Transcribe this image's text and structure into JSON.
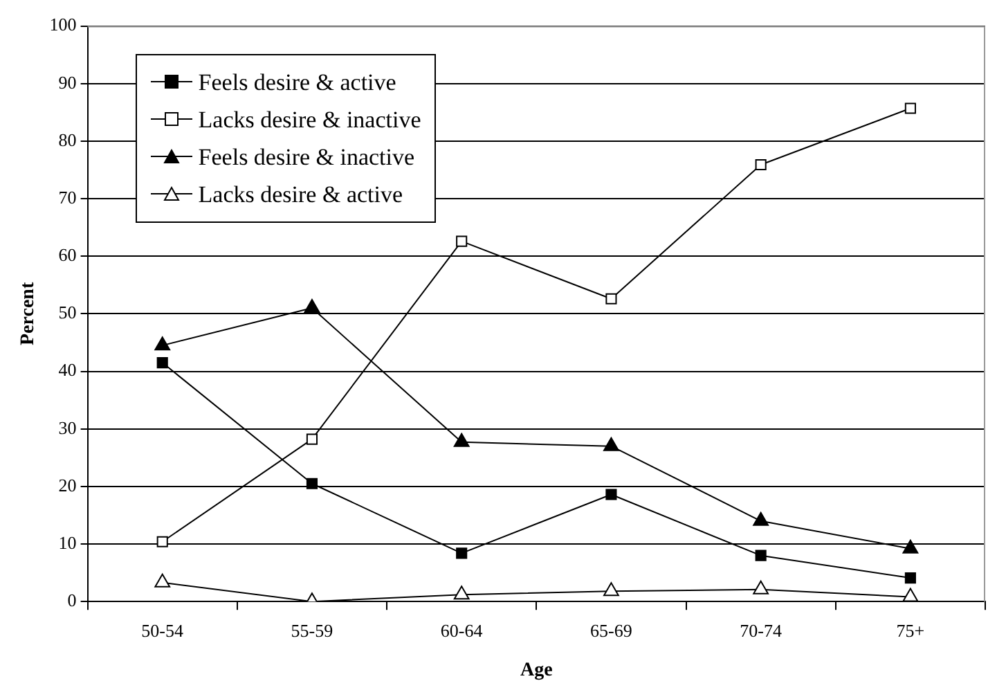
{
  "chart_data": {
    "type": "line",
    "xlabel": "Age",
    "ylabel": "Percent",
    "categories": [
      "50-54",
      "55-59",
      "60-64",
      "65-69",
      "70-74",
      "75+"
    ],
    "series": [
      {
        "name": "Feels desire & active",
        "color": "#000000",
        "marker": "square",
        "values": [
          41.5,
          20.5,
          8.4,
          18.6,
          8.0,
          4.1
        ]
      },
      {
        "name": "Lacks desire & inactive",
        "color": "#000000",
        "marker": "square",
        "colors": [
          "#ffffff",
          "#ffffff",
          "#ffffff",
          "#ffffff",
          "#ffffff",
          "#ffffff"
        ],
        "values": [
          10.4,
          28.2,
          62.6,
          52.6,
          75.9,
          85.7
        ]
      },
      {
        "name": "Feels desire & inactive",
        "color": "#000000",
        "marker": "triangle",
        "values": [
          44.5,
          51.0,
          27.7,
          27.0,
          14.0,
          9.2
        ]
      },
      {
        "name": "Lacks desire & active",
        "color": "#000000",
        "marker": "triangle",
        "colors": [
          "#ffffff",
          "#ffffff",
          "#ffffff",
          "#ffffff",
          "#ffffff",
          "#ffffff"
        ],
        "values": [
          3.3,
          0,
          1.2,
          1.8,
          2.1,
          0.8
        ]
      }
    ],
    "ylim": [
      0,
      100
    ],
    "yticks": [
      0,
      10,
      20,
      30,
      40,
      50,
      60,
      70,
      80,
      90,
      100
    ],
    "grid": "y",
    "legend": "top left",
    "line_style": "solid"
  }
}
